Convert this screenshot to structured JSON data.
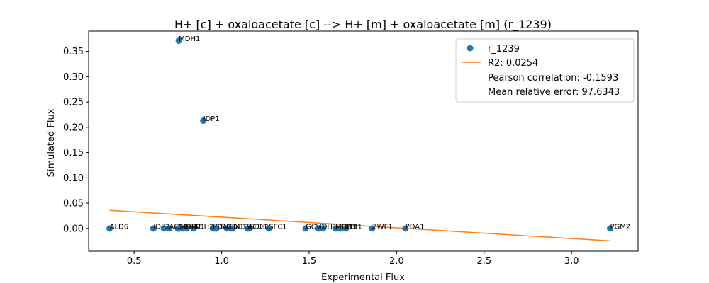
{
  "chart_data": {
    "type": "scatter",
    "title": "H+ [c] + oxaloacetate [c] --> H+ [m] + oxaloacetate [m] (r_1239)",
    "xlabel": "Experimental Flux",
    "ylabel": "Simulated Flux",
    "xlim": [
      0.24,
      3.38
    ],
    "ylim": [
      -0.045,
      0.39
    ],
    "xticks": [
      0.5,
      1.0,
      1.5,
      2.0,
      2.5,
      3.0
    ],
    "xtick_labels": [
      "0.5",
      "1.0",
      "1.5",
      "2.0",
      "2.5",
      "3.0"
    ],
    "yticks": [
      0.0,
      0.05,
      0.1,
      0.15,
      0.2,
      0.25,
      0.3,
      0.35
    ],
    "ytick_labels": [
      "0.00",
      "0.05",
      "0.10",
      "0.15",
      "0.20",
      "0.25",
      "0.30",
      "0.35"
    ],
    "grid": false,
    "legend_position": "top-right",
    "series": [
      {
        "name": "r_1239",
        "kind": "scatter",
        "color": "#1f77b4",
        "points": [
          {
            "label": "ALD6",
            "x": 0.36,
            "y": 0.0
          },
          {
            "label": "IDP2",
            "x": 0.61,
            "y": 0.0
          },
          {
            "label": "",
            "x": 0.67,
            "y": 0.0
          },
          {
            "label": "ACS1",
            "x": 0.7,
            "y": 0.0
          },
          {
            "label": "",
            "x": 0.75,
            "y": 0.0
          },
          {
            "label": "MDH2",
            "x": 0.76,
            "y": 0.0
          },
          {
            "label": "",
            "x": 0.78,
            "y": 0.0
          },
          {
            "label": "RPE1",
            "x": 0.8,
            "y": 0.0
          },
          {
            "label": "ADH2",
            "x": 0.84,
            "y": 0.0
          },
          {
            "label": "PDA1",
            "x": 0.95,
            "y": 0.0
          },
          {
            "label": "",
            "x": 0.96,
            "y": 0.0
          },
          {
            "label": "TDH3",
            "x": 0.97,
            "y": 0.0
          },
          {
            "label": "CDC19",
            "x": 1.03,
            "y": 0.0
          },
          {
            "label": "",
            "x": 1.05,
            "y": 0.0
          },
          {
            "label": "TAL1",
            "x": 1.06,
            "y": 0.0
          },
          {
            "label": "ACO1",
            "x": 1.15,
            "y": 0.0
          },
          {
            "label": "SDH1",
            "x": 1.16,
            "y": 0.0
          },
          {
            "label": "SFC1",
            "x": 1.27,
            "y": 0.0
          },
          {
            "label": "GCV1",
            "x": 1.48,
            "y": 0.0
          },
          {
            "label": "",
            "x": 1.55,
            "y": 0.0
          },
          {
            "label": "IDH1",
            "x": 1.56,
            "y": 0.0
          },
          {
            "label": "",
            "x": 1.58,
            "y": 0.0
          },
          {
            "label": "MDH1",
            "x": 1.65,
            "y": 0.0
          },
          {
            "label": "",
            "x": 1.66,
            "y": 0.0
          },
          {
            "label": "TKL1",
            "x": 1.68,
            "y": 0.0
          },
          {
            "label": "PGI1",
            "x": 1.71,
            "y": 0.0
          },
          {
            "label": "ZWF1",
            "x": 1.86,
            "y": 0.0
          },
          {
            "label": "PDA1",
            "x": 2.05,
            "y": 0.0
          },
          {
            "label": "PGM2",
            "x": 3.22,
            "y": 0.0
          },
          {
            "label": "MDH1",
            "x": 0.755,
            "y": 0.371
          },
          {
            "label": "IDP1",
            "x": 0.895,
            "y": 0.213
          }
        ]
      },
      {
        "name": "R2: 0.0254",
        "kind": "line",
        "color": "#ff7f0e",
        "x": [
          0.36,
          3.22
        ],
        "y": [
          0.0358,
          -0.0246
        ]
      }
    ],
    "legend_extra": [
      "Pearson correlation: -0.1593",
      "Mean relative error: 97.6343"
    ]
  }
}
